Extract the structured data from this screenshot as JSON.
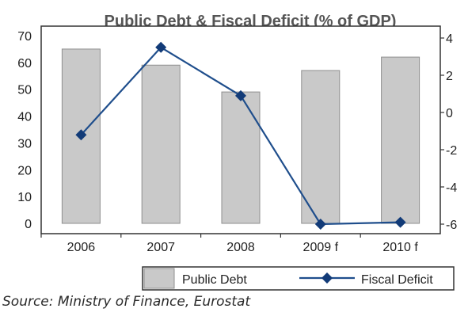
{
  "chart_data": {
    "type": "bar+line",
    "title": "Public Debt & Fiscal Deficit (% of GDP)",
    "categories": [
      "2006",
      "2007",
      "2008",
      "2009 f",
      "2010 f"
    ],
    "series": [
      {
        "name": "Public Debt",
        "type": "bar",
        "axis": "left",
        "values": [
          65,
          59,
          49,
          57,
          62
        ]
      },
      {
        "name": "Fiscal Deficit",
        "type": "line",
        "axis": "right",
        "values": [
          -1.2,
          3.5,
          0.9,
          -6.0,
          -5.9
        ]
      }
    ],
    "y_left": {
      "min": 0,
      "max": 70,
      "ticks": [
        0,
        10,
        20,
        30,
        40,
        50,
        60,
        70
      ]
    },
    "y_right": {
      "min": -6,
      "max": 4,
      "ticks": [
        4,
        2,
        0,
        -2,
        -4,
        -6
      ]
    },
    "grid": false,
    "legend_position": "bottom-right",
    "colors": {
      "bar": "#c9c9c9",
      "bar_stroke": "#8f8f8f",
      "line": "#1f4e8c",
      "marker": "#123b78"
    }
  },
  "source": "Source: Ministry of Finance, Eurostat"
}
